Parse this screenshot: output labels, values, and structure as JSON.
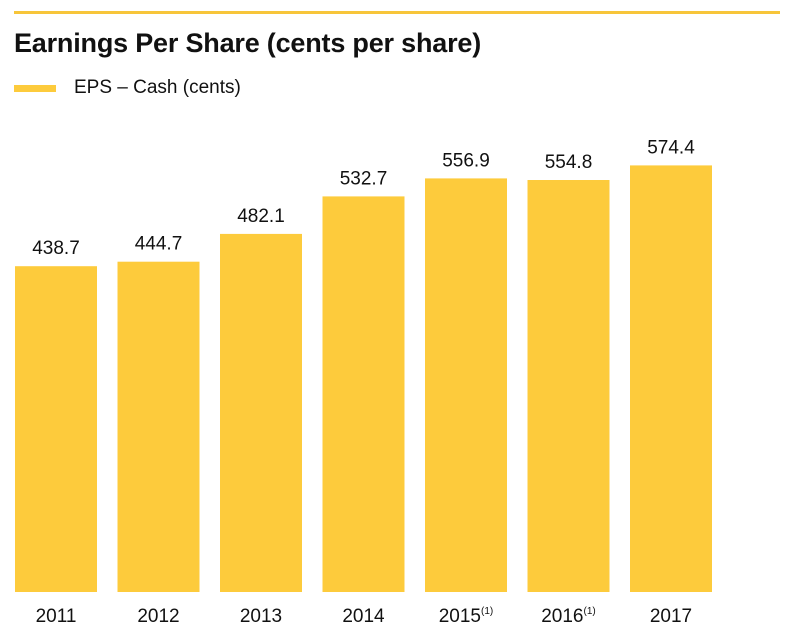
{
  "theme": {
    "accent": "#fdcb3c",
    "rule": "#f7c53a",
    "text": "#111111"
  },
  "chart_data": {
    "type": "bar",
    "title": "Earnings Per Share (cents per share)",
    "xlabel": "",
    "ylabel": "",
    "ylim": [
      0,
      600
    ],
    "grid": false,
    "legend_placement": "top-left",
    "categories": [
      "2011",
      "2012",
      "2013",
      "2014",
      "2015",
      "2016",
      "2017"
    ],
    "category_notes": [
      "",
      "",
      "",
      "",
      "(1)",
      "(1)",
      ""
    ],
    "series": [
      {
        "name": "EPS – Cash (cents)",
        "color": "#fdcb3c",
        "values": [
          438.7,
          444.7,
          482.1,
          532.7,
          556.9,
          554.8,
          574.4
        ],
        "labels": [
          "438.7",
          "444.7",
          "482.1",
          "532.7",
          "556.9",
          "554.8",
          "574.4"
        ]
      }
    ]
  }
}
